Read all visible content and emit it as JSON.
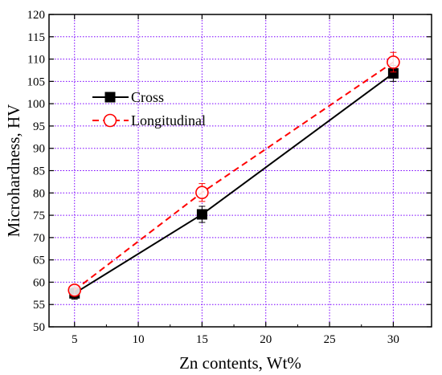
{
  "chart_data": {
    "type": "line",
    "title": "",
    "xlabel": "Zn contents, Wt%",
    "ylabel": "Microhardness, HV",
    "xlim": [
      3,
      33
    ],
    "ylim": [
      50,
      120
    ],
    "xticks": [
      5,
      10,
      15,
      20,
      25,
      30
    ],
    "yticks": [
      50,
      55,
      60,
      65,
      70,
      75,
      80,
      85,
      90,
      95,
      100,
      105,
      110,
      115,
      120
    ],
    "grid": true,
    "grid_color": "#7b00ff",
    "legend_position": "upper-left",
    "series": [
      {
        "name": "Cross",
        "color": "#000000",
        "line_style": "solid",
        "marker": "filled-square",
        "x": [
          5,
          15,
          30
        ],
        "y": [
          57.5,
          75.2,
          106.8
        ],
        "error": [
          1.3,
          1.8,
          1.8
        ]
      },
      {
        "name": "Longitudinal",
        "color": "#ff0000",
        "line_style": "dashed",
        "marker": "open-circle",
        "x": [
          5,
          15,
          30
        ],
        "y": [
          58.2,
          80.1,
          109.3
        ],
        "error": [
          1.0,
          2.0,
          2.2
        ]
      }
    ]
  }
}
